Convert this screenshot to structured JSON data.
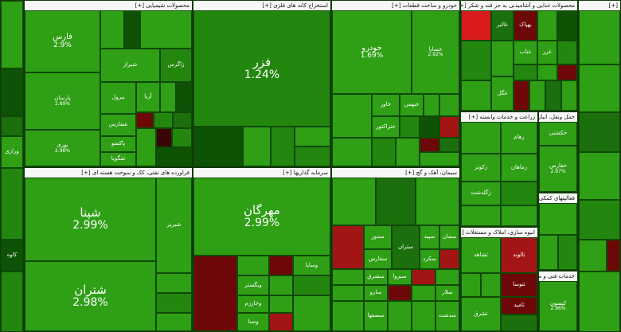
{
  "sectors": {
    "left_top": {
      "title": ""
    },
    "shimiyai": {
      "title": "محصولات شیمیایی [+]"
    },
    "felezi": {
      "title": "استخراج کانه های فلزی [+]"
    },
    "khodro": {
      "title": "خودرو و ساخت قطعات [+]"
    },
    "ghazai": {
      "title": "محصولات غذایی و آشامیدنی به جز قند و شکر [+]"
    },
    "far_right": {
      "title": "[+]"
    },
    "naft": {
      "title": "فراورده های نفتی، کک و سوخت هسته ای [+]"
    },
    "sarmaye": {
      "title": "سرمایه گذاریها [+]"
    },
    "siman": {
      "title": "سیمان، آهک و گچ [+]"
    },
    "zeraat": {
      "title": "زراعت و خدمات وابسته [+]"
    },
    "haml": {
      "title": "حمل ونقل، انبارداری و ارتباطات [+]"
    },
    "komaki": {
      "title": "فعالیتهای کمکی به نهادهای [+]"
    },
    "anbouh": {
      "title": "انبوه سازی، املاک و مستغلات [+]"
    },
    "khadamat": {
      "title": "خدمات فنی و مهندسی [+]"
    }
  },
  "tiles": {
    "farsi": {
      "sym": "فارس",
      "pct": "2.9%"
    },
    "parsan": {
      "sym": "پارسان",
      "pct": "2.89%"
    },
    "nouri": {
      "sym": "نوری",
      "pct": "2.98%"
    },
    "shiraz": {
      "sym": "شیراز"
    },
    "zagros": {
      "sym": "زاگرس"
    },
    "petrol": {
      "sym": "پترول"
    },
    "arya": {
      "sym": "آریا"
    },
    "shkhark": {
      "sym": "شفارس"
    },
    "paxo": {
      "sym": "پاکسو"
    },
    "shgoya": {
      "sym": "شگویا"
    },
    "fazar": {
      "sym": "فزر",
      "pct": "1.24%"
    },
    "khodro": {
      "sym": "خودرو",
      "pct": "1.69%"
    },
    "khasapa": {
      "sym": "خساپا",
      "pct": "2.92%"
    },
    "kharoo": {
      "sym": "خاور"
    },
    "khbahman": {
      "sym": "خبهمن"
    },
    "khzar": {
      "sym": "ختراکتور"
    },
    "shapna": {
      "sym": "شپنا",
      "pct": "2.99%"
    },
    "shatran": {
      "sym": "شتران",
      "pct": "2.98%"
    },
    "shbriz": {
      "sym": "شبریز"
    },
    "mehrgan": {
      "sym": "مهرگان",
      "pct": "2.99%"
    },
    "vasapa": {
      "sym": "وساپا"
    },
    "vbank": {
      "sym": "وبگستر"
    },
    "vkharazm": {
      "sym": "وخارزم"
    },
    "vsina": {
      "sym": "وصنا"
    },
    "ghalber": {
      "sym": "غالبر"
    },
    "bahpak": {
      "sym": "بهپاک"
    },
    "gnab": {
      "sym": "غناب"
    },
    "gzar": {
      "sym": "غزر"
    },
    "ghgol": {
      "sym": "غگل"
    },
    "khak": {
      "sym": "خاک"
    },
    "zhami": {
      "sym": "زهام"
    },
    "zkosar": {
      "sym": "زکوثر"
    },
    "zmagha": {
      "sym": "زماهان"
    },
    "zgeld": {
      "sym": "زگلدشت"
    },
    "hafarsi": {
      "sym": "حفارس",
      "pct": "2.97%"
    },
    "hkashti": {
      "sym": "حکشتی"
    },
    "sepid": {
      "sym": "سپید"
    },
    "sdor": {
      "sym": "سدور"
    },
    "seman": {
      "sym": "سمان"
    },
    "sfars": {
      "sym": "سفارس"
    },
    "sshahrood": {
      "sym": "سشرق"
    },
    "sghrb": {
      "sym": "سغرب"
    },
    "sbzh": {
      "sym": "سبزوا"
    },
    "slar": {
      "sym": "سلار"
    },
    "sarv": {
      "sym": "سارو"
    },
    "sesfaha": {
      "sym": "سصفها"
    },
    "skaroon": {
      "sym": "سکرد"
    },
    "stran": {
      "sym": "ستران"
    },
    "sdshat": {
      "sym": "سدشت"
    },
    "shgeb": {
      "sym": "ثشاهد"
    },
    "talvand": {
      "sym": "ثالوند"
    },
    "tosa": {
      "sym": "ثتوسا"
    },
    "tamid": {
      "sym": "ثامید"
    },
    "tshrq": {
      "sym": "ثشرق"
    },
    "kisun": {
      "sym": "کیسون",
      "pct": "2.96%"
    },
    "kave": {
      "sym": "کاوه"
    },
    "varaz": {
      "sym": "ورازی"
    },
    "ramp": {
      "sym": "رمپنا"
    },
    "kimia": {
      "sym": "کیمیا"
    }
  }
}
